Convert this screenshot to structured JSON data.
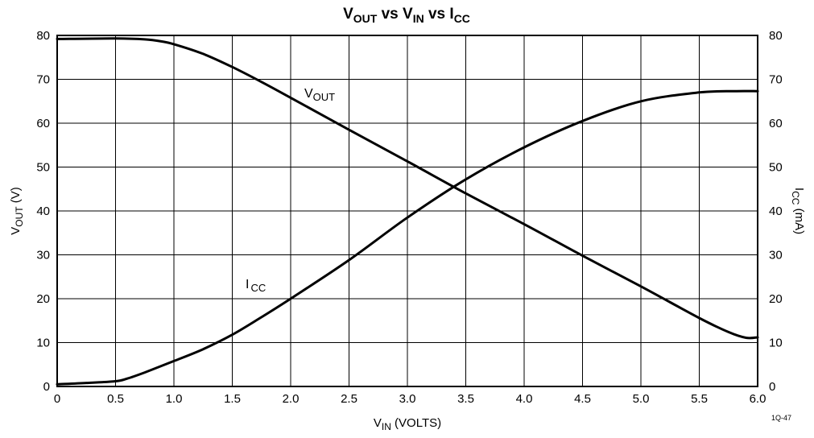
{
  "chart_data": {
    "type": "line",
    "title": {
      "main": "V",
      "sub1": "OUT",
      "mid1": " vs V",
      "sub2": "IN",
      "mid2": " vs I",
      "sub3": "CC"
    },
    "x_axis": {
      "label_main": "V",
      "label_sub": "IN",
      "label_suffix": " (VOLTS)",
      "range": [
        0,
        6
      ],
      "ticks": [
        "0",
        "0.5",
        "1.0",
        "1.5",
        "2.0",
        "2.5",
        "3.0",
        "3.5",
        "4.0",
        "4.5",
        "5.0",
        "5.5",
        "6.0"
      ]
    },
    "y_axis_left": {
      "label_main": "V",
      "label_sub": "OUT",
      "label_suffix": " (V)",
      "range": [
        0,
        80
      ],
      "ticks": [
        "0",
        "10",
        "20",
        "30",
        "40",
        "50",
        "60",
        "70",
        "80"
      ]
    },
    "y_axis_right": {
      "label_main": "I",
      "label_sub": "CC",
      "label_suffix": " (mA)",
      "range": [
        0,
        80
      ],
      "ticks": [
        "0",
        "10",
        "20",
        "30",
        "40",
        "50",
        "60",
        "70",
        "80"
      ]
    },
    "grid": true,
    "series": [
      {
        "name": "V",
        "name_sub": "OUT",
        "axis": "left",
        "x": [
          0,
          0.5,
          0.75,
          0.9,
          1.0,
          1.25,
          1.5,
          1.75,
          2.0,
          2.5,
          3.0,
          3.5,
          4.0,
          4.5,
          5.0,
          5.5,
          5.75,
          5.9,
          6.0
        ],
        "y": [
          79.2,
          79.3,
          79.1,
          78.6,
          78.0,
          75.8,
          72.8,
          69.4,
          65.8,
          58.5,
          51.3,
          44.0,
          37.0,
          29.8,
          22.8,
          15.6,
          12.4,
          11.1,
          11.2
        ]
      },
      {
        "name": "I",
        "name_sub": "CC",
        "axis": "right",
        "x": [
          0,
          0.25,
          0.5,
          0.6,
          0.75,
          1.0,
          1.25,
          1.5,
          1.75,
          2.0,
          2.5,
          3.0,
          3.5,
          4.0,
          4.5,
          5.0,
          5.5,
          5.8,
          6.0
        ],
        "y": [
          0.5,
          0.8,
          1.2,
          1.8,
          3.2,
          5.8,
          8.5,
          11.8,
          15.8,
          20.0,
          28.8,
          38.5,
          47.2,
          54.5,
          60.5,
          65.0,
          67.0,
          67.3,
          67.3
        ]
      }
    ],
    "annotations": [
      "1Q-47"
    ]
  }
}
